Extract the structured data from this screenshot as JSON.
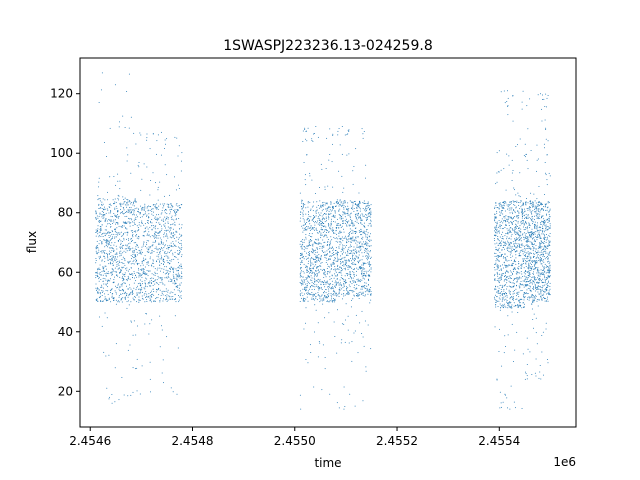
{
  "chart_data": {
    "type": "scatter",
    "title": "1SWASPJ223236.13-024259.8",
    "xlabel": "time",
    "ylabel": "flux",
    "x_offset_label": "1e6",
    "xlim": [
      2.45458,
      2.45555
    ],
    "ylim": [
      8,
      132
    ],
    "x_ticks": [
      2.4546,
      2.4548,
      2.455,
      2.4552,
      2.4554
    ],
    "x_tick_labels": [
      "2.4546",
      "2.4548",
      "2.4550",
      "2.4552",
      "2.4554"
    ],
    "y_ticks": [
      20,
      40,
      60,
      80,
      100,
      120
    ],
    "y_tick_labels": [
      "20",
      "40",
      "60",
      "80",
      "100",
      "120"
    ],
    "grid": false,
    "marker_color": "#1f77b4",
    "observing_seasons": [
      {
        "x_start": 2.45461,
        "x_end": 2.45469,
        "core_low": 50,
        "core_high": 85,
        "min": 16,
        "max": 127
      },
      {
        "x_start": 2.45469,
        "x_end": 2.45478,
        "core_low": 50,
        "core_high": 83,
        "min": 19,
        "max": 107
      },
      {
        "x_start": 2.45501,
        "x_end": 2.45508,
        "core_low": 50,
        "core_high": 84,
        "min": 14,
        "max": 109
      },
      {
        "x_start": 2.45508,
        "x_end": 2.45515,
        "core_low": 52,
        "core_high": 84,
        "min": 14,
        "max": 109
      },
      {
        "x_start": 2.45539,
        "x_end": 2.45545,
        "core_low": 48,
        "core_high": 84,
        "min": 14,
        "max": 121
      },
      {
        "x_start": 2.45545,
        "x_end": 2.4555,
        "core_low": 50,
        "core_high": 84,
        "min": 24,
        "max": 120
      }
    ]
  }
}
